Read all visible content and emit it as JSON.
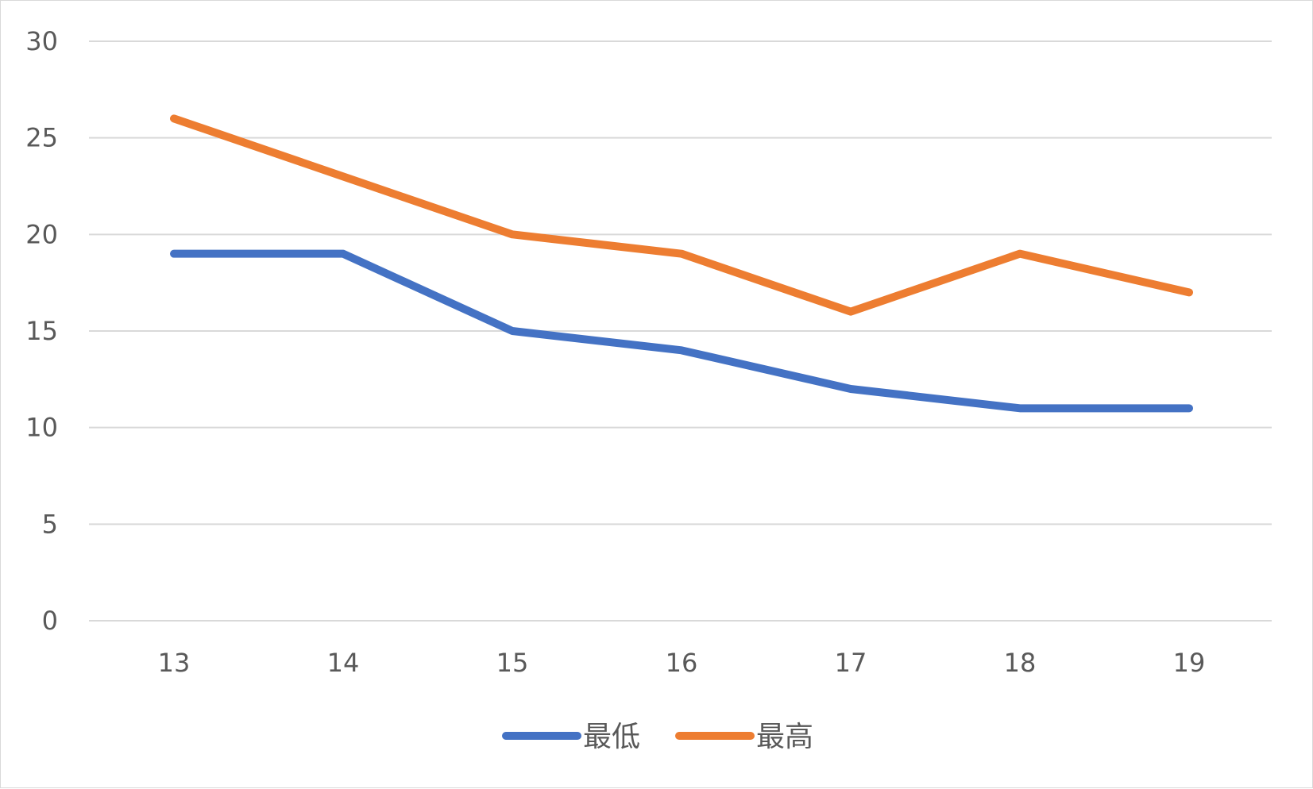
{
  "chart_data": {
    "type": "line",
    "title": "",
    "xlabel": "",
    "ylabel": "",
    "categories": [
      "13",
      "14",
      "15",
      "16",
      "17",
      "18",
      "19"
    ],
    "ylim": [
      0,
      30
    ],
    "yticks": [
      "0",
      "5",
      "10",
      "15",
      "20",
      "25",
      "30"
    ],
    "grid": true,
    "legend_position": "bottom",
    "series": [
      {
        "name": "最低",
        "color": "#4472c4",
        "values": [
          19,
          19,
          15,
          14,
          12,
          11,
          11
        ]
      },
      {
        "name": "最高",
        "color": "#ed7d31",
        "values": [
          26,
          23,
          20,
          19,
          16,
          19,
          17
        ]
      }
    ]
  }
}
